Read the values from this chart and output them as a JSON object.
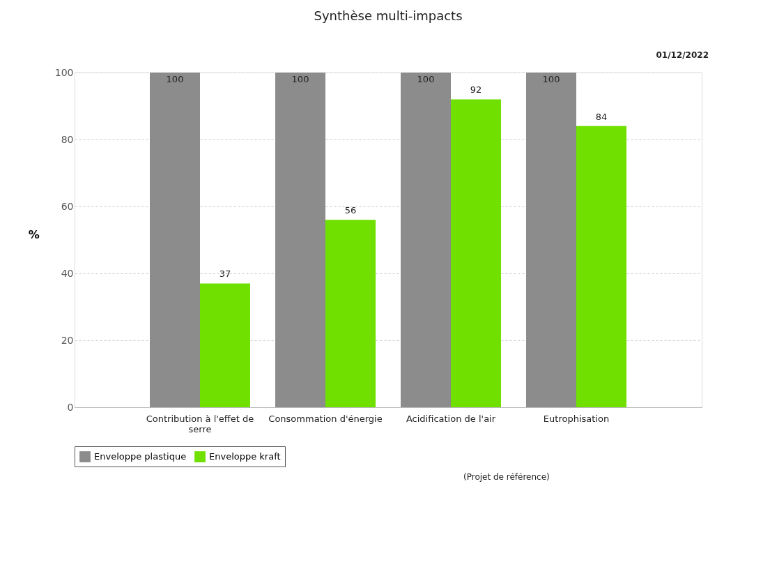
{
  "chart_data": {
    "type": "bar",
    "title": "Synthèse multi-impacts",
    "ylabel": "%",
    "categories": [
      "Contribution à l'effet de serre",
      "Consommation d'énergie",
      "Acidification de l'air",
      "Eutrophisation"
    ],
    "series": [
      {
        "name": "Enveloppe plastique",
        "color": "#8c8c8c",
        "values": [
          100,
          100,
          100,
          100
        ]
      },
      {
        "name": "Enveloppe kraft",
        "color": "#6fe000",
        "values": [
          37,
          56,
          92,
          84
        ]
      }
    ],
    "ylim": [
      0,
      100
    ],
    "yticks": [
      0,
      20,
      40,
      60,
      80,
      100
    ],
    "grid": "y",
    "legend": "bottom",
    "data_labels": true,
    "annotations": [
      "01/12/2022",
      "(Projet de référence)"
    ]
  }
}
